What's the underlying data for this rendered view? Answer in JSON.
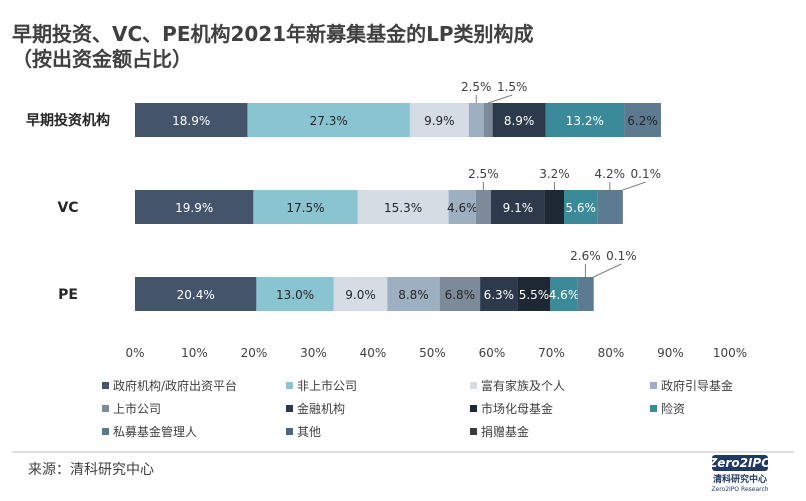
{
  "chart_data": {
    "type": "bar",
    "orientation": "horizontal",
    "stacked": true,
    "normalized": true,
    "title_line1": "早期投资、VC、PE机构2021年新募集基金的LP类别构成",
    "title_line2": "（按出资金额占比）",
    "categories": [
      "早期投资机构",
      "VC",
      "PE"
    ],
    "xlim": [
      0,
      100
    ],
    "x_ticks": [
      "0%",
      "10%",
      "20%",
      "30%",
      "40%",
      "50%",
      "60%",
      "70%",
      "80%",
      "90%",
      "100%"
    ],
    "grid": false,
    "legend_position": "bottom",
    "series": [
      {
        "name": "政府机构/政府出资平台",
        "color": "#44546a",
        "values": [
          18.9,
          19.9,
          20.4
        ],
        "labels": [
          "18.9%",
          "19.9%",
          "20.4%"
        ]
      },
      {
        "name": "非上市公司",
        "color": "#8bc4d1",
        "values": [
          27.3,
          17.5,
          13.0
        ],
        "labels": [
          "27.3%",
          "17.5%",
          "13.0%"
        ]
      },
      {
        "name": "富有家族及个人",
        "color": "#d5dce4",
        "values": [
          9.9,
          15.3,
          9.0
        ],
        "labels": [
          "9.9%",
          "15.3%",
          "9.0%"
        ]
      },
      {
        "name": "政府引导基金",
        "color": "#9eafc2",
        "values": [
          2.5,
          4.6,
          8.8
        ],
        "labels": [
          "2.5%",
          "4.6%",
          "8.8%"
        ]
      },
      {
        "name": "上市公司",
        "color": "#7d8a99",
        "values": [
          1.5,
          2.5,
          6.8
        ],
        "labels": [
          "1.5%",
          "2.5%",
          "6.8%"
        ]
      },
      {
        "name": "金融机构",
        "color": "#2c3a4b",
        "values": [
          8.9,
          9.1,
          6.3
        ],
        "labels": [
          "8.9%",
          "9.1%",
          "6.3%"
        ]
      },
      {
        "name": "市场化母基金",
        "color": "#1e2834",
        "values": [
          0.0,
          3.2,
          5.5
        ],
        "labels": [
          "",
          "3.2%",
          "5.5%"
        ]
      },
      {
        "name": "险资",
        "color": "#3a8a99",
        "values": [
          13.2,
          5.6,
          4.6
        ],
        "labels": [
          "13.2%",
          "5.6%",
          "4.6%"
        ]
      },
      {
        "name": "私募基金管理人",
        "color": "#5c7a90",
        "values": [
          6.2,
          4.2,
          2.6
        ],
        "labels": [
          "6.2%",
          "4.2%",
          "2.6%"
        ]
      },
      {
        "name": "其他",
        "color": "#4a6680",
        "values": [
          0.0,
          0.1,
          0.1
        ],
        "labels": [
          "",
          "0.1%",
          "0.1%"
        ]
      },
      {
        "name": "捐赠基金",
        "color": "#3c3c3c",
        "values": [
          0.0,
          0.0,
          0.0
        ],
        "labels": [
          "",
          "",
          ""
        ]
      }
    ]
  },
  "source": "来源：清科研究中心",
  "logo": {
    "brand": "Zero2IPO",
    "name_cn": "清科研究中心",
    "name_en": "Zero2IPO Research"
  }
}
